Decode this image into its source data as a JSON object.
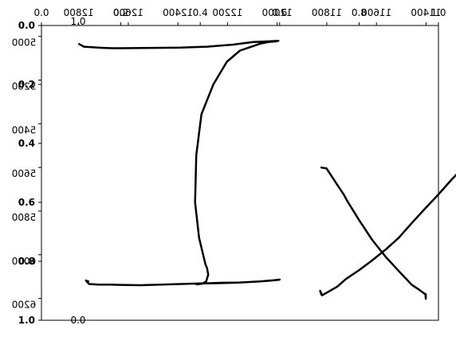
{
  "chart_data": {
    "type": "line",
    "title": "",
    "xlabel": "",
    "ylabel": "",
    "grid": false,
    "axes_overlapped": true,
    "x_axis_top": {
      "position": "top",
      "ticks": [
        {
          "value": 0,
          "label": "0.0"
        },
        {
          "value": 0.2,
          "label": "0.2"
        },
        {
          "value": 0.4,
          "label": "0.4"
        },
        {
          "value": 0.6,
          "label": "0.6"
        },
        {
          "value": 0.8,
          "label": "0.8"
        },
        {
          "value": 1.0,
          "label": "1.0"
        }
      ],
      "faint_tick_labels": [
        "1.0",
        "0.0"
      ]
    },
    "x_axis_mirrored": {
      "position": "top",
      "mirrored_text": true,
      "ticks": [
        {
          "value": 11400,
          "label": "11400"
        },
        {
          "value": 11600,
          "label": "11600"
        },
        {
          "value": 11800,
          "label": "11800"
        },
        {
          "value": 12000,
          "label": "12000"
        },
        {
          "value": 12200,
          "label": "12200"
        },
        {
          "value": 12400,
          "label": "12400"
        },
        {
          "value": 12600,
          "label": "12600"
        },
        {
          "value": 12800,
          "label": "12800"
        }
      ]
    },
    "y_axis_left": {
      "ticks": [
        {
          "value": 0,
          "label": "0.0"
        },
        {
          "value": 0.2,
          "label": "0.2"
        },
        {
          "value": 0.4,
          "label": "0.4"
        },
        {
          "value": 0.6,
          "label": "0.6"
        },
        {
          "value": 0.8,
          "label": "0.8"
        },
        {
          "value": 1.0,
          "label": "1.0"
        }
      ]
    },
    "y_axis_mirrored": {
      "mirrored_text": true,
      "ticks": [
        {
          "value": 5000,
          "label": "5000"
        },
        {
          "value": 5200,
          "label": "5200"
        },
        {
          "value": 5400,
          "label": "5400"
        },
        {
          "value": 5600,
          "label": "5600"
        },
        {
          "value": 5800,
          "label": "5800"
        },
        {
          "value": 6000,
          "label": "6000"
        },
        {
          "value": 6200,
          "label": "6200"
        }
      ]
    },
    "series": [
      {
        "values": [
          [
            0.095,
            0.063
          ],
          [
            0.107,
            0.072
          ],
          [
            0.143,
            0.075
          ],
          [
            0.178,
            0.077
          ],
          [
            0.2,
            0.077
          ],
          [
            0.283,
            0.076
          ],
          [
            0.35,
            0.075
          ],
          [
            0.417,
            0.072
          ],
          [
            0.483,
            0.065
          ],
          [
            0.533,
            0.056
          ],
          [
            0.567,
            0.054
          ],
          [
            0.597,
            0.052
          ],
          [
            0.59,
            0.054
          ],
          [
            0.578,
            0.055
          ],
          [
            0.567,
            0.057
          ],
          [
            0.55,
            0.062
          ],
          [
            0.533,
            0.07
          ],
          [
            0.5,
            0.085
          ],
          [
            0.467,
            0.123
          ],
          [
            0.433,
            0.2
          ],
          [
            0.403,
            0.301
          ],
          [
            0.39,
            0.44
          ],
          [
            0.387,
            0.6
          ],
          [
            0.397,
            0.72
          ],
          [
            0.413,
            0.81
          ],
          [
            0.417,
            0.823
          ],
          [
            0.42,
            0.845
          ],
          [
            0.415,
            0.868
          ],
          [
            0.405,
            0.876
          ],
          [
            0.39,
            0.878
          ],
          [
            0.395,
            0.876
          ],
          [
            0.408,
            0.875
          ],
          [
            0.45,
            0.873
          ],
          [
            0.5,
            0.872
          ],
          [
            0.55,
            0.868
          ],
          [
            0.58,
            0.865
          ],
          [
            0.6,
            0.862
          ],
          [
            0.598,
            0.863
          ],
          [
            0.55,
            0.868
          ],
          [
            0.5,
            0.872
          ],
          [
            0.45,
            0.874
          ],
          [
            0.4,
            0.875
          ],
          [
            0.35,
            0.877
          ],
          [
            0.3,
            0.879
          ],
          [
            0.25,
            0.881
          ],
          [
            0.2,
            0.88
          ],
          [
            0.175,
            0.879
          ],
          [
            0.143,
            0.879
          ],
          [
            0.133,
            0.878
          ],
          [
            0.12,
            0.877
          ],
          [
            0.117,
            0.873
          ],
          [
            0.112,
            0.865
          ],
          [
            0.118,
            0.868
          ]
        ]
      },
      {
        "values": [
          [
            0.705,
            0.482
          ],
          [
            0.718,
            0.485
          ],
          [
            0.74,
            0.53
          ],
          [
            0.762,
            0.575
          ],
          [
            0.77,
            0.595
          ],
          [
            0.8,
            0.66
          ],
          [
            0.833,
            0.727
          ],
          [
            0.867,
            0.785
          ],
          [
            0.9,
            0.833
          ],
          [
            0.933,
            0.88
          ],
          [
            0.95,
            0.895
          ],
          [
            0.967,
            0.912
          ],
          [
            0.968,
            0.927
          ],
          [
            0.968,
            0.912
          ]
        ]
      },
      {
        "values": [
          [
            0.705,
            0.913
          ],
          [
            0.702,
            0.9
          ],
          [
            0.707,
            0.915
          ],
          [
            0.72,
            0.905
          ],
          [
            0.745,
            0.886
          ],
          [
            0.767,
            0.86
          ],
          [
            0.8,
            0.83
          ],
          [
            0.833,
            0.797
          ],
          [
            0.867,
            0.76
          ],
          [
            0.9,
            0.72
          ],
          [
            0.933,
            0.67
          ],
          [
            0.967,
            0.62
          ],
          [
            1.0,
            0.573
          ],
          [
            1.033,
            0.523
          ],
          [
            1.067,
            0.475
          ],
          [
            1.1,
            0.428
          ],
          [
            1.117,
            0.407
          ],
          [
            1.123,
            0.385
          ],
          [
            1.122,
            0.38
          ]
        ]
      }
    ]
  }
}
